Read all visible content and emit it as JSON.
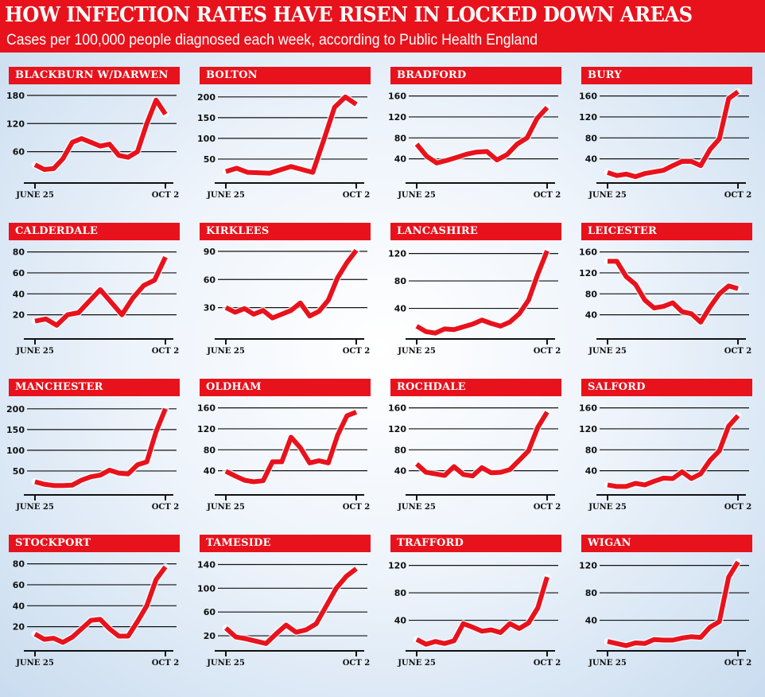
{
  "header": {
    "title": "HOW INFECTION RATES HAVE RISEN IN LOCKED DOWN AREAS",
    "subtitle": "Cases per 100,000 people diagnosed each week, according to Public Health England"
  },
  "colors": {
    "accent": "#e8121c",
    "line": "#e8121c",
    "grid": "#111111"
  },
  "chart_data": [
    {
      "type": "line",
      "title": "BLACKBURN W/DARWEN",
      "x_start": "JUNE 25",
      "x_end": "OCT 2",
      "yticks": [
        60,
        120,
        180
      ],
      "ylim": [
        0,
        190
      ],
      "values": [
        32,
        22,
        24,
        45,
        80,
        88,
        80,
        72,
        76,
        52,
        48,
        60,
        120,
        170,
        140
      ]
    },
    {
      "type": "line",
      "title": "BOLTON",
      "x_start": "JUNE 25",
      "x_end": "OCT 2",
      "yticks": [
        50,
        100,
        150,
        200
      ],
      "ylim": [
        0,
        215
      ],
      "values": [
        20,
        28,
        18,
        17,
        16,
        24,
        32,
        25,
        18,
        95,
        175,
        200,
        182
      ]
    },
    {
      "type": "line",
      "title": "BRADFORD",
      "x_start": "JUNE 25",
      "x_end": "OCT 2",
      "yticks": [
        40,
        80,
        120,
        160
      ],
      "ylim": [
        0,
        170
      ],
      "values": [
        68,
        45,
        32,
        37,
        43,
        49,
        53,
        54,
        38,
        48,
        68,
        80,
        117,
        138
      ]
    },
    {
      "type": "line",
      "title": "BURY",
      "x_start": "JUNE 25",
      "x_end": "OCT 2",
      "yticks": [
        40,
        80,
        120,
        160
      ],
      "ylim": [
        0,
        170
      ],
      "values": [
        14,
        8,
        11,
        6,
        12,
        15,
        18,
        27,
        35,
        35,
        27,
        58,
        78,
        155,
        168
      ]
    },
    {
      "type": "line",
      "title": "CALDERDALE",
      "x_start": "JUNE 25",
      "x_end": "OCT 2",
      "yticks": [
        20,
        40,
        60,
        80
      ],
      "ylim": [
        0,
        85
      ],
      "values": [
        14,
        16,
        10,
        20,
        22,
        33,
        44,
        32,
        20,
        36,
        48,
        53,
        75
      ]
    },
    {
      "type": "line",
      "title": "KIRKLEES",
      "x_start": "JUNE 25",
      "x_end": "OCT 2",
      "yticks": [
        30,
        60,
        90
      ],
      "ylim": [
        0,
        95
      ],
      "values": [
        30,
        25,
        29,
        23,
        27,
        19,
        23,
        27,
        35,
        21,
        26,
        38,
        62,
        78,
        91
      ]
    },
    {
      "type": "line",
      "title": "LANCASHIRE",
      "x_start": "JUNE 25",
      "x_end": "OCT 2",
      "yticks": [
        40,
        80,
        120
      ],
      "ylim": [
        0,
        130
      ],
      "values": [
        14,
        6,
        4,
        10,
        9,
        13,
        17,
        23,
        18,
        14,
        20,
        32,
        52,
        90,
        124
      ]
    },
    {
      "type": "line",
      "title": "LEICESTER",
      "x_start": "JUNE 25",
      "x_end": "OCT 2",
      "yticks": [
        40,
        80,
        120,
        160
      ],
      "ylim": [
        0,
        170
      ],
      "values": [
        142,
        142,
        113,
        98,
        68,
        53,
        56,
        63,
        46,
        42,
        26,
        55,
        80,
        95,
        90
      ]
    },
    {
      "type": "line",
      "title": "MANCHESTER",
      "x_start": "JUNE 25",
      "x_end": "OCT 2",
      "yticks": [
        50,
        100,
        150,
        200
      ],
      "ylim": [
        0,
        215
      ],
      "values": [
        24,
        18,
        15,
        15,
        16,
        28,
        36,
        40,
        52,
        45,
        43,
        65,
        72,
        145,
        200
      ]
    },
    {
      "type": "line",
      "title": "OLDHAM",
      "x_start": "JUNE 25",
      "x_end": "OCT 2",
      "yticks": [
        40,
        80,
        120,
        160
      ],
      "ylim": [
        0,
        170
      ],
      "values": [
        39,
        30,
        22,
        19,
        21,
        57,
        57,
        104,
        84,
        55,
        59,
        55,
        108,
        145,
        152
      ]
    },
    {
      "type": "line",
      "title": "ROCHDALE",
      "x_start": "JUNE 25",
      "x_end": "OCT 2",
      "yticks": [
        40,
        80,
        120,
        160
      ],
      "ylim": [
        0,
        170
      ],
      "values": [
        53,
        37,
        34,
        31,
        48,
        33,
        30,
        46,
        36,
        37,
        42,
        60,
        78,
        123,
        152
      ]
    },
    {
      "type": "line",
      "title": "SALFORD",
      "x_start": "JUNE 25",
      "x_end": "OCT 2",
      "yticks": [
        40,
        80,
        120,
        160
      ],
      "ylim": [
        0,
        170
      ],
      "values": [
        13,
        10,
        10,
        16,
        13,
        20,
        26,
        25,
        38,
        25,
        34,
        60,
        78,
        125,
        145
      ]
    },
    {
      "type": "line",
      "title": "STOCKPORT",
      "x_start": "JUNE 25",
      "x_end": "OCT 2",
      "yticks": [
        20,
        40,
        60,
        80
      ],
      "ylim": [
        0,
        85
      ],
      "values": [
        13,
        8,
        9,
        5,
        10,
        18,
        26,
        27,
        18,
        11,
        11,
        25,
        40,
        65,
        77
      ]
    },
    {
      "type": "line",
      "title": "TAMESIDE",
      "x_start": "JUNE 25",
      "x_end": "OCT 2",
      "yticks": [
        20,
        60,
        100,
        140
      ],
      "ylim": [
        0,
        150
      ],
      "values": [
        33,
        18,
        15,
        11,
        7,
        23,
        38,
        26,
        30,
        40,
        70,
        100,
        120,
        133
      ]
    },
    {
      "type": "line",
      "title": "TRAFFORD",
      "x_start": "JUNE 25",
      "x_end": "OCT 2",
      "yticks": [
        40,
        80,
        120
      ],
      "ylim": [
        0,
        130
      ],
      "values": [
        12,
        5,
        9,
        6,
        10,
        35,
        30,
        24,
        26,
        22,
        35,
        28,
        36,
        58,
        103
      ]
    },
    {
      "type": "line",
      "title": "WIGAN",
      "x_start": "JUNE 25",
      "x_end": "OCT 2",
      "yticks": [
        40,
        80,
        120
      ],
      "ylim": [
        0,
        130
      ],
      "values": [
        9,
        6,
        3,
        7,
        6,
        12,
        11,
        11,
        14,
        16,
        15,
        30,
        38,
        103,
        125
      ]
    }
  ]
}
